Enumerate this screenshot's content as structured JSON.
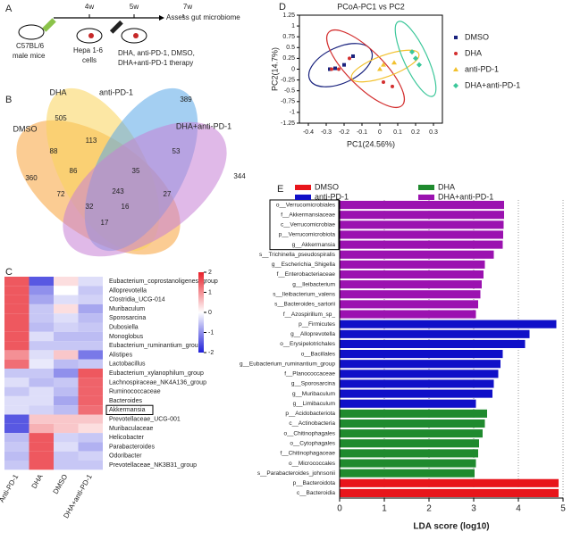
{
  "panel_labels": [
    "A",
    "B",
    "C",
    "D",
    "E"
  ],
  "timeline": {
    "weeks": [
      "4w",
      "5w",
      "7w"
    ],
    "endpoint": "Assess gut microbiome",
    "mice": [
      "C57BL/6",
      "male mice"
    ],
    "cells": [
      "Hepa 1-6",
      "cells"
    ],
    "therapy": [
      "DHA, anti-PD-1, DMSO,",
      "DHA+anti-PD-1 therapy"
    ]
  },
  "chart_data": [
    {
      "type": "venn",
      "sets": [
        {
          "name": "DMSO",
          "color": "#f7a23b"
        },
        {
          "name": "DHA",
          "color": "#f9d45a"
        },
        {
          "name": "anti-PD-1",
          "color": "#5aa8e8"
        },
        {
          "name": "DHA+anti-PD-1",
          "color": "#c77fd6"
        }
      ],
      "values": [
        505,
        389,
        360,
        344,
        113,
        88,
        53,
        86,
        35,
        72,
        243,
        27,
        32,
        16,
        17
      ]
    },
    {
      "type": "heatmap",
      "rows": [
        "Eubacterium_coprostanoligenes_group",
        "Alloprevotella",
        "Clostridia_UCG-014",
        "Muribaculum",
        "Sporosarcina",
        "Dubosiella",
        "Monoglobus",
        "Eubacterium_ruminantium_group",
        "Alistipes",
        "Lactobacillus",
        "Eubacterium_xylanophilum_group",
        "Lachnospiraceae_NK4A136_group",
        "Ruminococcaceae",
        "Bacteroides",
        "Akkermansia",
        "Prevotellaceae_UCG-001",
        "Muribaculaceae",
        "Helicobacter",
        "Parabacteroides",
        "Odoribacter",
        "Prevotellaceae_NK3B31_group"
      ],
      "columns": [
        "Anti-PD-1",
        "DHA",
        "DMSO",
        "DHA+anti-PD-1"
      ],
      "values": [
        [
          1.5,
          -1.5,
          0.3,
          -0.3
        ],
        [
          1.5,
          -1,
          0,
          -0.5
        ],
        [
          1.5,
          -0.8,
          -0.3,
          -0.4
        ],
        [
          1.5,
          -0.5,
          0.3,
          -0.8
        ],
        [
          1.5,
          -0.5,
          -0.3,
          -0.6
        ],
        [
          1.5,
          -0.6,
          -0.4,
          -0.5
        ],
        [
          1.5,
          -0.3,
          -0.6,
          -0.6
        ],
        [
          1.5,
          -0.5,
          -0.5,
          -0.5
        ],
        [
          1,
          -0.3,
          0.5,
          -1.2
        ],
        [
          1.3,
          -0.2,
          -0.6,
          -0.5
        ],
        [
          -0.5,
          -0.5,
          -1,
          1.5
        ],
        [
          -0.3,
          -0.6,
          -0.5,
          1.4
        ],
        [
          -0.5,
          -0.3,
          -0.6,
          1.4
        ],
        [
          -0.3,
          -0.3,
          -0.8,
          1.4
        ],
        [
          -0.3,
          -0.4,
          -0.6,
          1.3
        ],
        [
          -1.5,
          0.5,
          0.5,
          0.5
        ],
        [
          -1.5,
          0.7,
          0.5,
          0.3
        ],
        [
          -0.6,
          1.5,
          -0.4,
          -0.5
        ],
        [
          -0.5,
          1.5,
          -0.3,
          -0.7
        ],
        [
          -0.6,
          1.5,
          -0.5,
          -0.4
        ],
        [
          -0.5,
          1.5,
          -0.5,
          -0.5
        ]
      ],
      "colorbar_ticks": [
        2,
        1,
        0,
        -1,
        -2
      ]
    },
    {
      "type": "scatter",
      "title": "PCoA-PC1 vs PC2",
      "xlabel": "PC1(24.56%)",
      "ylabel": "PC2(14.7%)",
      "xlim": [
        -0.45,
        0.35
      ],
      "ylim": [
        -1.25,
        1.25
      ],
      "xticks": [
        -0.4,
        -0.3,
        -0.2,
        -0.1,
        0,
        0.1,
        0.2,
        0.3
      ],
      "yticks": [
        -1.25,
        -1,
        -0.75,
        -0.5,
        -0.25,
        0,
        0.25,
        0.5,
        0.75,
        1,
        1.25
      ],
      "series": [
        {
          "name": "DMSO",
          "color": "#1a237e",
          "marker": "square",
          "x": [
            -0.28,
            -0.25,
            -0.2,
            -0.15
          ],
          "values": [
            0,
            0.02,
            0.1,
            0.3
          ]
        },
        {
          "name": "DHA",
          "color": "#d32f2f",
          "marker": "circle",
          "x": [
            -0.27,
            -0.23,
            -0.17,
            0.02,
            0.07
          ],
          "values": [
            0,
            0,
            0.25,
            -0.3,
            -0.4
          ]
        },
        {
          "name": "anti-PD-1",
          "color": "#f2c12e",
          "marker": "triangle",
          "x": [
            0,
            0.02,
            0.08
          ],
          "values": [
            0,
            0.1,
            0.15
          ]
        },
        {
          "name": "DHA+anti-PD-1",
          "color": "#3cc79a",
          "marker": "diamond",
          "x": [
            0.18,
            0.2,
            0.22
          ],
          "values": [
            0.4,
            0.25,
            0.1
          ]
        }
      ]
    },
    {
      "type": "barh",
      "xlabel": "LDA score (log10)",
      "xlim": [
        0,
        5
      ],
      "xticks": [
        0,
        1,
        2,
        3,
        4,
        5
      ],
      "grid": true,
      "series": [
        {
          "name": "DMSO",
          "color": "#e8151b",
          "categories": [
            "p__Bacteroidota",
            "c__Bacteroidia"
          ],
          "values": [
            4.9,
            4.9
          ]
        },
        {
          "name": "DHA",
          "color": "#1f8a2e",
          "categories": [
            "p__Acidobacteriota",
            "c__Actinobacteria",
            "o__Chitinophagales",
            "o__Cytophagales",
            "f__Chitinophagaceae",
            "o__Micrococcales",
            "s__Parabacteroides_johnsonii"
          ],
          "values": [
            3.3,
            3.25,
            3.2,
            3.12,
            3.1,
            3.05,
            3.02
          ]
        },
        {
          "name": "anti-PD-1",
          "color": "#1010c8",
          "categories": [
            "p__Firmicutes",
            "g__Alloprevotella",
            "o__Erysipelotrichales",
            "o__Bacillales",
            "g__Eubacterium_ruminantium_group",
            "f__Planococcaceae",
            "g__Sporosarcina",
            "g__Muribaculum",
            "g__Limibaculum"
          ],
          "values": [
            4.85,
            4.25,
            4.15,
            3.65,
            3.6,
            3.55,
            3.45,
            3.42,
            3.05
          ]
        },
        {
          "name": "DHA+anti-PD-1",
          "color": "#9b12b0",
          "categories": [
            "o__Verrucomicrobiales",
            "f__Akkermansiaceae",
            "c__Verrucomicrobiae",
            "p__Verrucomicrobiota",
            "g__Akkermansia",
            "s__Trichinella_pseudospiralis",
            "g__Escherichia_Shigella",
            "f__Enterobacteriaceae",
            "g__Ileibacterium",
            "s__Ileibacterium_valens",
            "s__Bacteroides_sartorii",
            "f__Azospirillum_sp_"
          ],
          "values": [
            3.68,
            3.68,
            3.67,
            3.66,
            3.65,
            3.45,
            3.25,
            3.22,
            3.18,
            3.15,
            3.1,
            3.05
          ]
        }
      ]
    }
  ]
}
